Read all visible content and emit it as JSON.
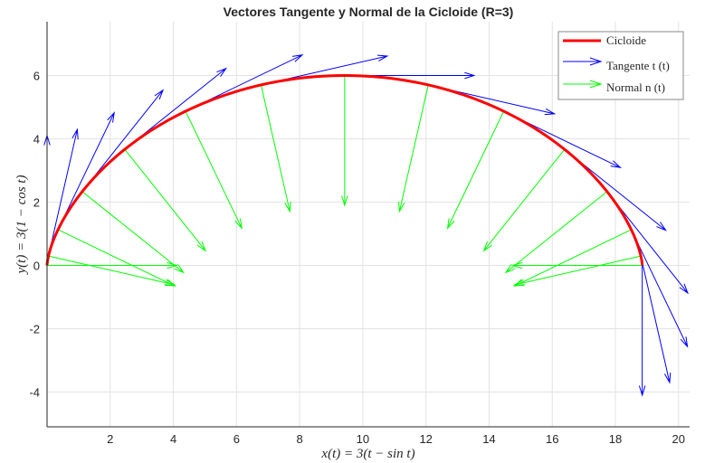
{
  "chart_data": {
    "type": "line",
    "title": "Vectores Tangente y Normal de la Cicloide (R=3)",
    "xlabel": "x(t) = 3(t − sin t)",
    "ylabel": "y(t) = 3(1 − cos t)",
    "xlim": [
      0,
      20.35
    ],
    "ylim": [
      -5.1,
      7.7
    ],
    "xticks": [
      2,
      4,
      6,
      8,
      10,
      12,
      14,
      16,
      18,
      20
    ],
    "yticks": [
      -4,
      -2,
      0,
      2,
      4,
      6
    ],
    "grid": true,
    "legend_position": "top-right",
    "curve": {
      "name": "Cicloide",
      "R": 3,
      "t_range": [
        0,
        6.2832
      ],
      "color": "#ff0000"
    },
    "vector_samples_t": [
      0,
      0.4488,
      0.8976,
      1.3464,
      1.7952,
      2.244,
      2.6928,
      3.1416,
      3.5904,
      4.0392,
      4.488,
      4.9368,
      5.3856,
      5.8344,
      6.2832
    ],
    "vector_length": 4.1,
    "series": [
      {
        "name": "Tangente  t (t)",
        "color": "#0000ff"
      },
      {
        "name": "Normal  n (t)",
        "color": "#00ff00"
      }
    ]
  }
}
